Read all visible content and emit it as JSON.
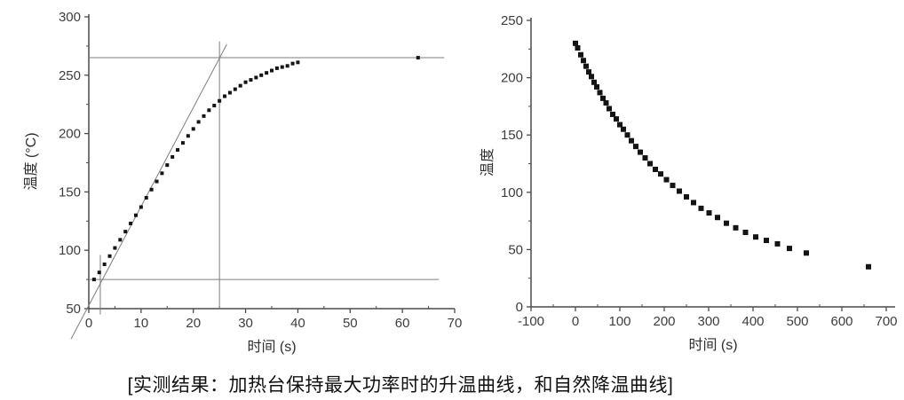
{
  "figure": {
    "caption": "[实测结果：加热台保持最大功率时的升温曲线，和自然降温曲线]"
  },
  "colors": {
    "background": "#ffffff",
    "axis": "#4a4a4a",
    "tick_label": "#3d3d3d",
    "marker": "#141414",
    "annotation_line": "#7e7e7e",
    "caption_text": "#111111"
  },
  "chart_data": [
    {
      "type": "scatter",
      "title": "",
      "xlabel": "时间 (s)",
      "ylabel": "温度 (°C)",
      "xlim": [
        0,
        70
      ],
      "ylim": [
        50,
        300
      ],
      "xticks": [
        0,
        10,
        20,
        30,
        40,
        50,
        60,
        70
      ],
      "yticks": [
        50,
        100,
        150,
        200,
        250,
        300
      ],
      "xminor_step": 5,
      "yminor_step": 25,
      "grid": false,
      "legend": "none",
      "marker": "square",
      "marker_size": 4,
      "points": [
        [
          1,
          75
        ],
        [
          2,
          81
        ],
        [
          3,
          88
        ],
        [
          4,
          95
        ],
        [
          5,
          102
        ],
        [
          6,
          109
        ],
        [
          7,
          116
        ],
        [
          8,
          123
        ],
        [
          9,
          130
        ],
        [
          10,
          137
        ],
        [
          11,
          145
        ],
        [
          12,
          152
        ],
        [
          13,
          159
        ],
        [
          14,
          166
        ],
        [
          15,
          173
        ],
        [
          16,
          180
        ],
        [
          17,
          186
        ],
        [
          18,
          192
        ],
        [
          19,
          198
        ],
        [
          20,
          204
        ],
        [
          21,
          210
        ],
        [
          22,
          215
        ],
        [
          23,
          220
        ],
        [
          24,
          224
        ],
        [
          25,
          228
        ],
        [
          26,
          232
        ],
        [
          27,
          235
        ],
        [
          28,
          238
        ],
        [
          29,
          241
        ],
        [
          30,
          244
        ],
        [
          31,
          246
        ],
        [
          32,
          248
        ],
        [
          33,
          250
        ],
        [
          34,
          252
        ],
        [
          35,
          254
        ],
        [
          36,
          256
        ],
        [
          37,
          257
        ],
        [
          38,
          258
        ],
        [
          39,
          260
        ],
        [
          40,
          261
        ],
        [
          63,
          265
        ]
      ],
      "annotation_lines": [
        {
          "name": "max-temp-hline",
          "x1": 0,
          "y1": 265,
          "x2": 68,
          "y2": 265
        },
        {
          "name": "start-temp-hline",
          "x1": 0,
          "y1": 75,
          "x2": 67,
          "y2": 75
        },
        {
          "name": "tangent-time-vline",
          "x1": 25,
          "y1": 50,
          "x2": 25,
          "y2": 279
        },
        {
          "name": "start-time-vline",
          "x1": 2.2,
          "y1": 45,
          "x2": 2.2,
          "y2": 96
        },
        {
          "name": "tangent-line",
          "x1": -3.4,
          "y1": 24,
          "x2": 26.4,
          "y2": 276.5
        }
      ]
    },
    {
      "type": "scatter",
      "title": "",
      "xlabel": "时间 (s)",
      "ylabel": "温度",
      "xlim": [
        -100,
        720
      ],
      "ylim": [
        0,
        250
      ],
      "xticks": [
        -100,
        0,
        100,
        200,
        300,
        400,
        500,
        600,
        700
      ],
      "yticks": [
        0,
        50,
        100,
        150,
        200,
        250
      ],
      "xminor_step": 50,
      "yminor_step": 25,
      "grid": false,
      "legend": "none",
      "marker": "square",
      "marker_size": 6,
      "points": [
        [
          0,
          230
        ],
        [
          5,
          226
        ],
        [
          12,
          220
        ],
        [
          18,
          215
        ],
        [
          24,
          210
        ],
        [
          30,
          205
        ],
        [
          36,
          201
        ],
        [
          42,
          196
        ],
        [
          48,
          192
        ],
        [
          55,
          187
        ],
        [
          62,
          182
        ],
        [
          69,
          178
        ],
        [
          76,
          173
        ],
        [
          84,
          168
        ],
        [
          92,
          164
        ],
        [
          100,
          159
        ],
        [
          108,
          155
        ],
        [
          117,
          150
        ],
        [
          126,
          145
        ],
        [
          136,
          140
        ],
        [
          146,
          135
        ],
        [
          157,
          130
        ],
        [
          168,
          125
        ],
        [
          180,
          120
        ],
        [
          192,
          116
        ],
        [
          205,
          111
        ],
        [
          219,
          106
        ],
        [
          234,
          101
        ],
        [
          250,
          96
        ],
        [
          266,
          91
        ],
        [
          283,
          86
        ],
        [
          301,
          82
        ],
        [
          320,
          78
        ],
        [
          340,
          73
        ],
        [
          361,
          69
        ],
        [
          383,
          65
        ],
        [
          406,
          61
        ],
        [
          430,
          58
        ],
        [
          455,
          55
        ],
        [
          482,
          51
        ],
        [
          520,
          47
        ],
        [
          660,
          35
        ]
      ],
      "annotation_lines": []
    }
  ]
}
